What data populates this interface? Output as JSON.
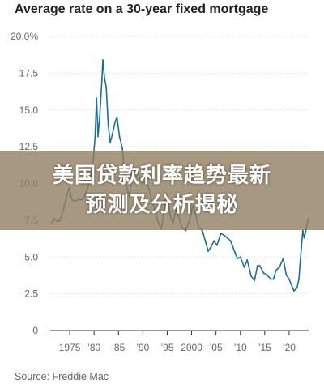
{
  "chart_data": {
    "type": "line",
    "title": "Average rate on a 30-year fixed mortgage",
    "source": "Source: Freddie Mac",
    "xlim": [
      1971,
      2024
    ],
    "ylim": [
      0,
      20
    ],
    "y_ticks": [
      0,
      2.5,
      5.0,
      7.5,
      10.0,
      12.5,
      15.0,
      17.5,
      20.0
    ],
    "y_tick_labels": [
      "0",
      "2.5",
      "5.0",
      "7.5",
      "10.0",
      "12.5",
      "15.0",
      "17.5",
      "20.0%"
    ],
    "x_ticks": [
      1975,
      1980,
      1985,
      1990,
      1995,
      2000,
      2005,
      2010,
      2015,
      2020
    ],
    "x_tick_labels": [
      "1975",
      "’80",
      "’85",
      "’90",
      "’95",
      "2000",
      "’05",
      "’10",
      "’15",
      "’20"
    ],
    "grid": true,
    "line_color": "#1f6e98",
    "series": [
      {
        "points": [
          [
            1971.3,
            7.3
          ],
          [
            1971.8,
            7.6
          ],
          [
            1972.5,
            7.4
          ],
          [
            1973.0,
            7.5
          ],
          [
            1973.7,
            8.2
          ],
          [
            1974.4,
            9.2
          ],
          [
            1974.9,
            9.7
          ],
          [
            1975.4,
            8.9
          ],
          [
            1976.0,
            8.8
          ],
          [
            1976.8,
            8.9
          ],
          [
            1977.5,
            8.9
          ],
          [
            1978.0,
            9.1
          ],
          [
            1978.6,
            9.6
          ],
          [
            1979.2,
            10.4
          ],
          [
            1979.8,
            11.5
          ],
          [
            1980.2,
            13.2
          ],
          [
            1980.5,
            15.8
          ],
          [
            1980.8,
            13.2
          ],
          [
            1981.2,
            14.8
          ],
          [
            1981.6,
            17.0
          ],
          [
            1981.8,
            18.4
          ],
          [
            1982.1,
            17.3
          ],
          [
            1982.5,
            16.5
          ],
          [
            1982.9,
            14.0
          ],
          [
            1983.3,
            12.8
          ],
          [
            1983.8,
            13.4
          ],
          [
            1984.3,
            14.2
          ],
          [
            1984.7,
            14.5
          ],
          [
            1985.2,
            13.2
          ],
          [
            1985.8,
            12.4
          ],
          [
            1986.3,
            10.3
          ],
          [
            1986.9,
            9.5
          ],
          [
            1987.3,
            9.1
          ],
          [
            1987.8,
            10.8
          ],
          [
            1988.4,
            10.3
          ],
          [
            1989.0,
            10.8
          ],
          [
            1989.5,
            10.2
          ],
          [
            1990.0,
            10.0
          ],
          [
            1990.7,
            10.1
          ],
          [
            1991.3,
            9.6
          ],
          [
            1991.9,
            8.7
          ],
          [
            1992.4,
            8.3
          ],
          [
            1993.0,
            7.5
          ],
          [
            1993.8,
            6.9
          ],
          [
            1994.5,
            8.5
          ],
          [
            1994.9,
            9.2
          ],
          [
            1995.6,
            7.8
          ],
          [
            1996.2,
            7.3
          ],
          [
            1996.8,
            8.2
          ],
          [
            1997.3,
            7.8
          ],
          [
            1998.0,
            7.0
          ],
          [
            1998.8,
            6.8
          ],
          [
            1999.5,
            7.4
          ],
          [
            2000.3,
            8.5
          ],
          [
            2000.8,
            7.9
          ],
          [
            2001.5,
            7.0
          ],
          [
            2002.2,
            6.8
          ],
          [
            2002.9,
            6.0
          ],
          [
            2003.4,
            5.4
          ],
          [
            2004.0,
            5.7
          ],
          [
            2004.6,
            6.1
          ],
          [
            2005.2,
            5.8
          ],
          [
            2006.0,
            6.6
          ],
          [
            2006.6,
            6.5
          ],
          [
            2007.3,
            6.3
          ],
          [
            2008.0,
            6.1
          ],
          [
            2008.9,
            5.3
          ],
          [
            2009.4,
            4.9
          ],
          [
            2010.0,
            5.0
          ],
          [
            2010.8,
            4.3
          ],
          [
            2011.4,
            4.8
          ],
          [
            2012.2,
            3.7
          ],
          [
            2012.9,
            3.4
          ],
          [
            2013.5,
            4.4
          ],
          [
            2014.0,
            4.4
          ],
          [
            2014.8,
            3.9
          ],
          [
            2015.4,
            3.8
          ],
          [
            2016.2,
            3.5
          ],
          [
            2016.8,
            3.5
          ],
          [
            2017.3,
            4.1
          ],
          [
            2018.0,
            4.3
          ],
          [
            2018.8,
            4.9
          ],
          [
            2019.4,
            3.8
          ],
          [
            2020.0,
            3.5
          ],
          [
            2020.6,
            3.0
          ],
          [
            2021.0,
            2.7
          ],
          [
            2021.6,
            2.9
          ],
          [
            2022.0,
            3.5
          ],
          [
            2022.3,
            4.8
          ],
          [
            2022.5,
            5.6
          ],
          [
            2022.8,
            6.8
          ],
          [
            2023.1,
            6.3
          ],
          [
            2023.5,
            6.9
          ],
          [
            2023.9,
            7.6
          ]
        ]
      }
    ]
  },
  "overlay": {
    "line1": "美国贷款利率趋势最新",
    "line2": "预测及分析揭秘"
  }
}
